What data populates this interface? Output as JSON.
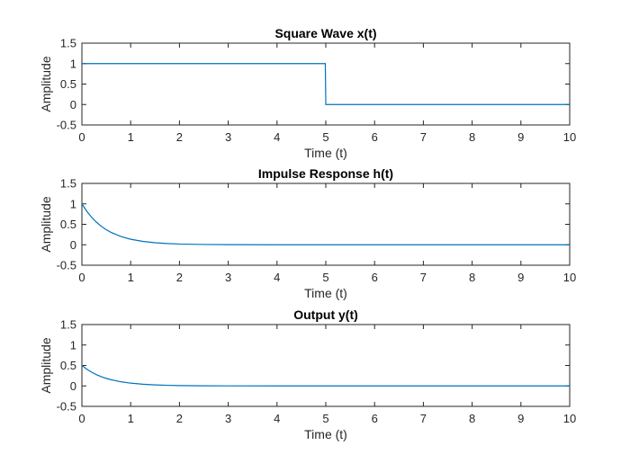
{
  "chart_data": [
    {
      "type": "line",
      "title": "Square Wave x(t)",
      "xlabel": "Time (t)",
      "ylabel": "Amplitude",
      "xlim": [
        0,
        10
      ],
      "ylim": [
        -0.5,
        1.5
      ],
      "xticks": [
        "0",
        "1",
        "2",
        "3",
        "4",
        "5",
        "6",
        "7",
        "8",
        "9",
        "10"
      ],
      "yticks": [
        "-0.5",
        "0",
        "0.5",
        "1",
        "1.5"
      ],
      "grid": false,
      "color": "#0072BD",
      "series": [
        {
          "x": [
            0,
            4.99,
            5.0,
            10
          ],
          "y": [
            1,
            1,
            0,
            0
          ]
        }
      ]
    },
    {
      "type": "line",
      "title": "Impulse Response h(t)",
      "xlabel": "Time (t)",
      "ylabel": "Amplitude",
      "xlim": [
        0,
        10
      ],
      "ylim": [
        -0.5,
        1.5
      ],
      "xticks": [
        "0",
        "1",
        "2",
        "3",
        "4",
        "5",
        "6",
        "7",
        "8",
        "9",
        "10"
      ],
      "yticks": [
        "-0.5",
        "0",
        "0.5",
        "1",
        "1.5"
      ],
      "grid": false,
      "color": "#0072BD",
      "series": [
        {
          "x": [
            0,
            0.1,
            0.2,
            0.3,
            0.4,
            0.5,
            0.6,
            0.8,
            1.0,
            1.25,
            1.5,
            1.75,
            2.0,
            2.5,
            3.0,
            4.0,
            5.0,
            6.0,
            8.0,
            10.0
          ],
          "y": [
            1.0,
            0.819,
            0.67,
            0.549,
            0.449,
            0.368,
            0.301,
            0.202,
            0.135,
            0.082,
            0.05,
            0.03,
            0.018,
            0.007,
            0.002,
            0.0,
            0.0,
            0.0,
            0.0,
            0.0
          ]
        }
      ]
    },
    {
      "type": "line",
      "title": "Output y(t)",
      "xlabel": "Time (t)",
      "ylabel": "Amplitude",
      "xlim": [
        0,
        10
      ],
      "ylim": [
        -0.5,
        1.5
      ],
      "xticks": [
        "0",
        "1",
        "2",
        "3",
        "4",
        "5",
        "6",
        "7",
        "8",
        "9",
        "10"
      ],
      "yticks": [
        "-0.5",
        "0",
        "0.5",
        "1",
        "1.5"
      ],
      "grid": false,
      "color": "#0072BD",
      "series": [
        {
          "x": [
            0,
            0.1,
            0.2,
            0.3,
            0.4,
            0.5,
            0.6,
            0.8,
            1.0,
            1.25,
            1.5,
            1.75,
            2.0,
            2.5,
            3.0,
            4.0,
            5.0,
            6.0,
            8.0,
            10.0
          ],
          "y": [
            0.5,
            0.409,
            0.335,
            0.274,
            0.225,
            0.184,
            0.151,
            0.101,
            0.068,
            0.041,
            0.025,
            0.015,
            0.009,
            0.003,
            0.001,
            0.0,
            0.0,
            0.0,
            0.0,
            0.0
          ]
        }
      ]
    }
  ]
}
